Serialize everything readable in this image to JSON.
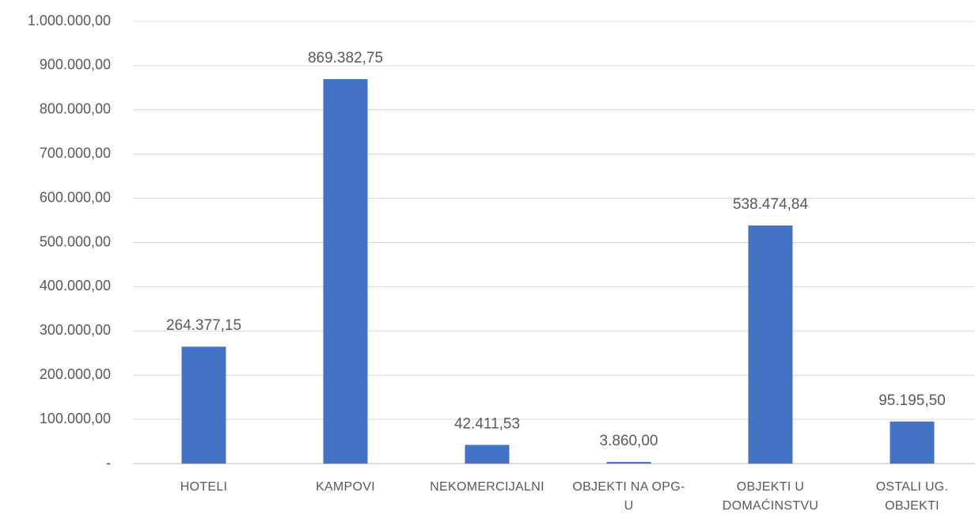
{
  "chart_data": {
    "type": "bar",
    "categories": [
      "HOTELI",
      "KAMPOVI",
      "NEKOMERCIJALNI",
      "OBJEKTI NA OPG-U",
      "OBJEKTI U DOMAĆINSTVU",
      "OSTALI UG. OBJEKTI"
    ],
    "values": [
      264377.15,
      869382.75,
      42411.53,
      3860,
      538474.84,
      95195.5
    ],
    "value_labels": [
      "264.377,15",
      "869.382,75",
      "42.411,53",
      "3.860,00",
      "538.474,84",
      "95.195,50"
    ],
    "color": "#4472c4",
    "ylim": [
      0,
      1000000
    ],
    "yticks": [
      {
        "value": 0,
        "label": "-"
      },
      {
        "value": 100000,
        "label": "100.000,00"
      },
      {
        "value": 200000,
        "label": "200.000,00"
      },
      {
        "value": 300000,
        "label": "300.000,00"
      },
      {
        "value": 400000,
        "label": "400.000,00"
      },
      {
        "value": 500000,
        "label": "500.000,00"
      },
      {
        "value": 600000,
        "label": "600.000,00"
      },
      {
        "value": 700000,
        "label": "700.000,00"
      },
      {
        "value": 800000,
        "label": "800.000,00"
      },
      {
        "value": 900000,
        "label": "900.000,00"
      },
      {
        "value": 1000000,
        "label": "1.000.000,00"
      }
    ],
    "grid": true
  }
}
